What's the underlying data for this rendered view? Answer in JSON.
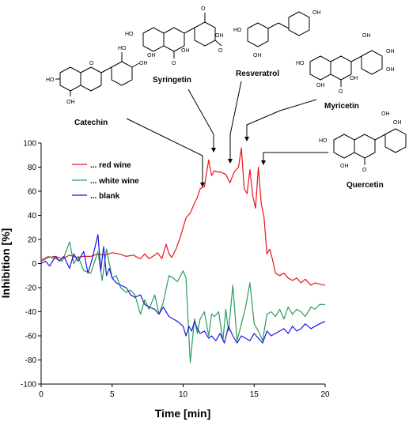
{
  "chart_data": {
    "type": "line",
    "title": "",
    "xlabel": "Time [min]",
    "ylabel": "Inhibition [%]",
    "xlim": [
      0,
      20
    ],
    "ylim": [
      -100,
      100
    ],
    "xticks": [
      0,
      5,
      10,
      15,
      20
    ],
    "yticks": [
      100,
      80,
      60,
      40,
      20,
      0,
      -20,
      -40,
      -60,
      -80,
      -100
    ],
    "grid": false,
    "legend_position": "top-left",
    "series": [
      {
        "name": "... red wine",
        "color": "#e8141c",
        "x": [
          0,
          0.5,
          1,
          1.5,
          2,
          2.5,
          3,
          3.5,
          4,
          4.5,
          5,
          5.5,
          6,
          6.5,
          6.8,
          7,
          7.3,
          7.6,
          8,
          8.2,
          8.5,
          8.8,
          9,
          9.2,
          9.5,
          9.8,
          10,
          10.2,
          10.5,
          10.8,
          11,
          11.2,
          11.5,
          11.8,
          12,
          12.2,
          12.4,
          12.6,
          12.8,
          13,
          13.3,
          13.6,
          13.9,
          14.1,
          14.3,
          14.5,
          14.7,
          14.9,
          15.1,
          15.3,
          15.5,
          15.7,
          15.9,
          16.1,
          16.3,
          16.5,
          16.8,
          17.1,
          17.4,
          17.7,
          18,
          18.3,
          18.6,
          19,
          19.3,
          19.6,
          20
        ],
        "values": [
          2,
          5,
          6,
          4,
          7,
          5,
          6,
          6,
          8,
          7,
          9,
          8,
          6,
          7,
          5,
          4,
          8,
          4,
          7,
          9,
          4,
          16,
          8,
          5,
          12,
          22,
          30,
          38,
          42,
          50,
          55,
          62,
          64,
          86,
          73,
          77,
          76,
          76,
          75,
          74,
          67,
          76,
          80,
          96,
          62,
          58,
          78,
          56,
          46,
          80,
          50,
          38,
          8,
          12,
          3,
          -8,
          -10,
          -8,
          -12,
          -14,
          -12,
          -16,
          -13,
          -18,
          -16,
          -17,
          -18
        ]
      },
      {
        "name": "... white wine",
        "color": "#2e9c5a",
        "x": [
          0,
          0.5,
          1,
          1.5,
          2,
          2.3,
          2.6,
          3,
          3.5,
          4,
          4.3,
          4.6,
          5,
          5.3,
          5.6,
          6,
          6.3,
          6.6,
          7,
          7.3,
          7.6,
          8,
          8.3,
          8.6,
          9,
          9.3,
          9.6,
          10,
          10.2,
          10.5,
          10.8,
          11,
          11.2,
          11.5,
          11.8,
          12,
          12.2,
          12.5,
          12.8,
          13,
          13.2,
          13.5,
          13.8,
          14.1,
          14.4,
          14.7,
          15,
          15.3,
          15.6,
          15.9,
          16.2,
          16.5,
          16.8,
          17.1,
          17.4,
          17.7,
          18,
          18.3,
          18.6,
          19,
          19.3,
          19.6,
          20
        ],
        "values": [
          3,
          6,
          4,
          2,
          18,
          0,
          6,
          -6,
          -8,
          10,
          -14,
          12,
          -12,
          -10,
          -20,
          -24,
          -22,
          -26,
          -42,
          -30,
          -38,
          -26,
          -42,
          -32,
          -10,
          -12,
          -15,
          -6,
          -12,
          -82,
          -46,
          -58,
          -46,
          -40,
          -60,
          -42,
          -44,
          -40,
          -64,
          -38,
          -56,
          -18,
          -64,
          -50,
          -36,
          -16,
          -50,
          -56,
          -64,
          -42,
          -40,
          -44,
          -38,
          -46,
          -36,
          -42,
          -38,
          -40,
          -44,
          -36,
          -38,
          -34,
          -34
        ]
      },
      {
        "name": "... blank",
        "color": "#1a16e0",
        "x": [
          0,
          0.3,
          0.6,
          1,
          1.3,
          1.6,
          2,
          2.3,
          2.6,
          3,
          3.3,
          3.6,
          4,
          4.2,
          4.4,
          4.6,
          4.8,
          5,
          5.3,
          5.6,
          6,
          6.3,
          6.6,
          7,
          7.3,
          7.6,
          8,
          8.3,
          8.6,
          9,
          9.3,
          9.6,
          10,
          10.2,
          10.4,
          10.6,
          10.8,
          11,
          11.2,
          11.5,
          11.8,
          12,
          12.3,
          12.6,
          12.9,
          13.2,
          13.5,
          13.8,
          14.1,
          14.4,
          14.7,
          15,
          15.3,
          15.6,
          15.9,
          16.2,
          16.5,
          16.8,
          17.1,
          17.4,
          17.7,
          18,
          18.3,
          18.6,
          19,
          19.3,
          19.6,
          20
        ],
        "values": [
          0,
          2,
          -2,
          6,
          2,
          6,
          -4,
          8,
          2,
          10,
          -8,
          4,
          24,
          -6,
          14,
          -10,
          -4,
          -12,
          -16,
          -18,
          -20,
          -26,
          -28,
          -26,
          -34,
          -36,
          -38,
          -42,
          -36,
          -44,
          -46,
          -48,
          -52,
          -60,
          -52,
          -56,
          -48,
          -54,
          -58,
          -56,
          -62,
          -60,
          -64,
          -58,
          -66,
          -52,
          -60,
          -66,
          -60,
          -62,
          -64,
          -58,
          -62,
          -66,
          -56,
          -60,
          -58,
          -56,
          -54,
          -58,
          -52,
          -56,
          -54,
          -50,
          -54,
          -52,
          -50,
          -48
        ]
      }
    ],
    "annotations": [
      {
        "label": "Catechin",
        "target": [
          12.0,
          64
        ]
      },
      {
        "label": "Syringetin",
        "target": [
          12.2,
          80
        ]
      },
      {
        "label": "Resveratrol",
        "target": [
          13.5,
          76
        ]
      },
      {
        "label": "Myricetin",
        "target": [
          14.3,
          90
        ]
      },
      {
        "label": "Quercetin",
        "target": [
          15.8,
          80
        ]
      }
    ]
  }
}
